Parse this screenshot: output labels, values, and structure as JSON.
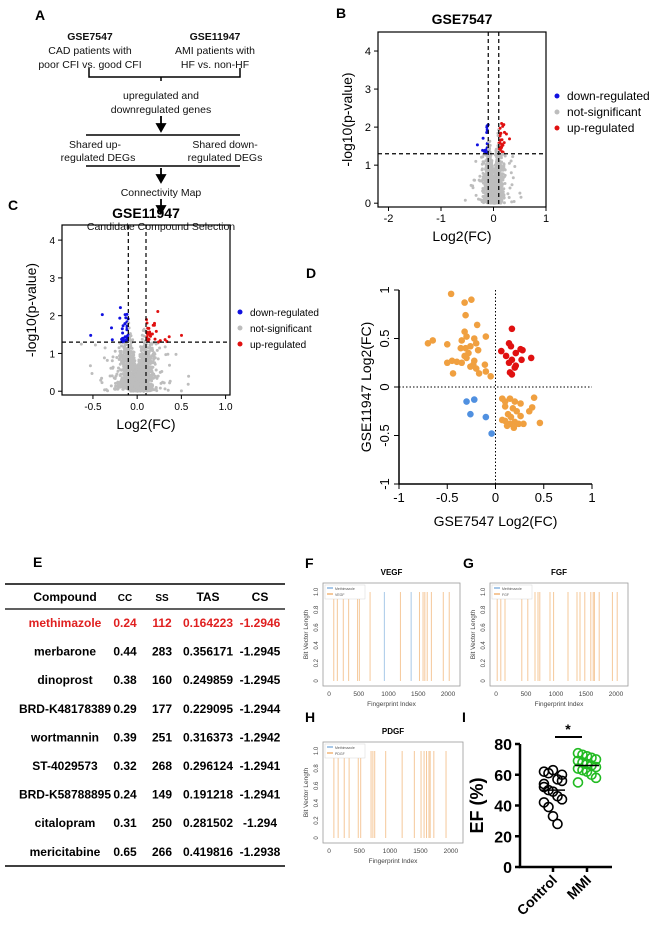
{
  "panel_labels": {
    "a": "A",
    "b": "B",
    "c": "C",
    "d": "D",
    "e": "E",
    "f": "F",
    "g": "G",
    "h": "H",
    "i": "I"
  },
  "flowchart": {
    "left_title": "GSE7547",
    "left_line1": "CAD patients with",
    "left_line2": "poor CFI vs. good CFI",
    "right_title": "GSE11947",
    "right_line1": "AMI patients with",
    "right_line2": "HF vs. non-HF",
    "step1_line1": "upregulated and",
    "step1_line2": "downregulated genes",
    "shared_up_line1": "Shared up-",
    "shared_up_line2": "regulated DEGs",
    "shared_down_line1": "Shared down-",
    "shared_down_line2": "regulated DEGs",
    "step3": "Connectivity Map",
    "step4": "Candidate Compound Selection"
  },
  "chart_data": [
    {
      "id": "B",
      "type": "scatter",
      "title": "GSE7547",
      "xlabel": "Log2(FC)",
      "ylabel": "-log10(p-value)",
      "xlim": [
        -2.2,
        1
      ],
      "ylim": [
        -0.1,
        4.5
      ],
      "xticks": [
        "-2",
        "-1",
        "0",
        "1"
      ],
      "yticks": [
        "0",
        "1",
        "2",
        "3",
        "4"
      ],
      "thresholds": {
        "fc": [
          -0.1,
          0.1
        ],
        "p": 1.3
      },
      "legend": [
        "down-regulated",
        "not-significant",
        "up-regulated"
      ],
      "legend_position": "right",
      "colors": {
        "down": "#1010e0",
        "ns": "#bdbdbd",
        "up": "#e01010"
      }
    },
    {
      "id": "C",
      "type": "scatter",
      "title": "GSE11947",
      "xlabel": "Log2(FC)",
      "ylabel": "-log10(p-value)",
      "xlim": [
        -0.85,
        1.05
      ],
      "ylim": [
        -0.1,
        4.4
      ],
      "xticks": [
        "-0.5",
        "0.0",
        "0.5",
        "1.0"
      ],
      "yticks": [
        "0",
        "1",
        "2",
        "3",
        "4"
      ],
      "thresholds": {
        "fc": [
          -0.1,
          0.1
        ],
        "p": 1.3
      },
      "legend": [
        "down-regulated",
        "not-significant",
        "up-regulated"
      ],
      "legend_position": "right",
      "colors": {
        "down": "#1010e0",
        "ns": "#bdbdbd",
        "up": "#e01010"
      }
    },
    {
      "id": "D",
      "type": "scatter",
      "xlabel": "GSE7547 Log2(FC)",
      "ylabel": "GSE11947 Log2(FC)",
      "xlim": [
        -1,
        1
      ],
      "ylim": [
        -1,
        1
      ],
      "xticks": [
        "-1",
        "-0.5",
        "0",
        "0.5",
        "1"
      ],
      "yticks": [
        "-1",
        "-0.5",
        "0",
        "0.5",
        "1"
      ],
      "colors": {
        "discordant": "#f0a040",
        "up": "#e01010",
        "down": "#5090e0"
      },
      "up_points": [
        [
          0.17,
          0.6
        ],
        [
          0.14,
          0.45
        ],
        [
          0.16,
          0.42
        ],
        [
          0.26,
          0.39
        ],
        [
          0.28,
          0.38
        ],
        [
          0.06,
          0.37
        ],
        [
          0.21,
          0.35
        ],
        [
          0.11,
          0.32
        ],
        [
          0.37,
          0.3
        ],
        [
          0.17,
          0.28
        ],
        [
          0.27,
          0.28
        ],
        [
          0.14,
          0.25
        ],
        [
          0.21,
          0.22
        ],
        [
          0.2,
          0.2
        ],
        [
          0.15,
          0.15
        ],
        [
          0.17,
          0.13
        ]
      ],
      "down_points": [
        [
          -0.3,
          -0.15
        ],
        [
          -0.22,
          -0.13
        ],
        [
          -0.26,
          -0.28
        ],
        [
          -0.1,
          -0.31
        ],
        [
          -0.04,
          -0.48
        ]
      ],
      "discordant_points": [
        [
          -0.46,
          0.96
        ],
        [
          -0.25,
          0.9
        ],
        [
          -0.32,
          0.87
        ],
        [
          -0.31,
          0.74
        ],
        [
          -0.19,
          0.64
        ],
        [
          -0.32,
          0.57
        ],
        [
          -0.3,
          0.52
        ],
        [
          -0.1,
          0.52
        ],
        [
          -0.7,
          0.45
        ],
        [
          -0.65,
          0.48
        ],
        [
          -0.5,
          0.44
        ],
        [
          -0.35,
          0.48
        ],
        [
          -0.22,
          0.5
        ],
        [
          -0.2,
          0.45
        ],
        [
          -0.26,
          0.42
        ],
        [
          -0.36,
          0.4
        ],
        [
          -0.31,
          0.4
        ],
        [
          -0.18,
          0.38
        ],
        [
          -0.28,
          0.35
        ],
        [
          -0.32,
          0.32
        ],
        [
          -0.3,
          0.3
        ],
        [
          -0.45,
          0.27
        ],
        [
          -0.4,
          0.26
        ],
        [
          -0.5,
          0.25
        ],
        [
          -0.35,
          0.25
        ],
        [
          -0.22,
          0.27
        ],
        [
          -0.23,
          0.23
        ],
        [
          -0.26,
          0.21
        ],
        [
          -0.11,
          0.23
        ],
        [
          -0.2,
          0.19
        ],
        [
          -0.44,
          0.14
        ],
        [
          -0.17,
          0.14
        ],
        [
          -0.1,
          0.16
        ],
        [
          -0.05,
          0.11
        ],
        [
          0.07,
          -0.12
        ],
        [
          0.1,
          -0.15
        ],
        [
          0.15,
          -0.12
        ],
        [
          0.2,
          -0.15
        ],
        [
          0.26,
          -0.17
        ],
        [
          0.4,
          -0.11
        ],
        [
          0.1,
          -0.2
        ],
        [
          0.18,
          -0.22
        ],
        [
          0.22,
          -0.25
        ],
        [
          0.13,
          -0.28
        ],
        [
          0.38,
          -0.21
        ],
        [
          0.35,
          -0.25
        ],
        [
          0.16,
          -0.31
        ],
        [
          0.26,
          -0.3
        ],
        [
          0.1,
          -0.35
        ],
        [
          0.2,
          -0.36
        ],
        [
          0.07,
          -0.34
        ],
        [
          0.24,
          -0.38
        ],
        [
          0.15,
          -0.38
        ],
        [
          0.19,
          -0.42
        ],
        [
          0.29,
          -0.38
        ],
        [
          0.46,
          -0.37
        ],
        [
          0.12,
          -0.4
        ]
      ]
    },
    {
      "id": "F",
      "type": "bar",
      "title": "VEGF",
      "xlabel": "Fingerprint Index",
      "ylabel": "Bit Vector Length",
      "xlim": [
        0,
        2100
      ],
      "ylim": [
        0,
        1
      ],
      "xticks": [
        "0",
        "500",
        "1000",
        "1500",
        "2000"
      ],
      "yticks": [
        "0",
        "0.2",
        "0.4",
        "0.6",
        "0.8",
        "1.0"
      ],
      "legend": [
        "Methimazole",
        "VEGF"
      ],
      "legend_position": "top-left",
      "colors": {
        "Methimazole": "#a8c8e8",
        "other": "#f5c89a"
      },
      "methimazole_bits": [
        930,
        1380
      ],
      "other_bits": [
        80,
        140,
        240,
        330,
        480,
        510,
        690,
        1200,
        1520,
        1580,
        1610,
        1650,
        1720,
        1920,
        2020
      ]
    },
    {
      "id": "G",
      "type": "bar",
      "title": "FGF",
      "xlabel": "Fingerprint Index",
      "ylabel": "Bit Vector Length",
      "xlim": [
        0,
        2100
      ],
      "ylim": [
        0,
        1
      ],
      "xticks": [
        "0",
        "500",
        "1000",
        "1500",
        "2000"
      ],
      "yticks": [
        "0",
        "0.2",
        "0.4",
        "0.6",
        "0.8",
        "1.0"
      ],
      "legend": [
        "Methimazole",
        "FGF"
      ],
      "legend_position": "top-left",
      "colors": {
        "Methimazole": "#a8c8e8",
        "other": "#f5c89a"
      },
      "methimazole_bits": [],
      "other_bits": [
        20,
        80,
        150,
        430,
        530,
        650,
        700,
        730,
        900,
        960,
        1200,
        1350,
        1400,
        1480,
        1580,
        1620,
        1640,
        1720,
        1940,
        2020
      ]
    },
    {
      "id": "H",
      "type": "bar",
      "title": "PDGF",
      "xlabel": "Fingerprint Index",
      "ylabel": "Bit Vector Length",
      "xlim": [
        0,
        2100
      ],
      "ylim": [
        0,
        1
      ],
      "xticks": [
        "0",
        "500",
        "1000",
        "1500",
        "2000"
      ],
      "yticks": [
        "0",
        "0.2",
        "0.4",
        "0.6",
        "0.8",
        "1.0"
      ],
      "legend": [
        "Methimazole",
        "PDGF"
      ],
      "legend_position": "top-left",
      "colors": {
        "Methimazole": "#a8c8e8",
        "other": "#f5c89a"
      },
      "methimazole_bits": [],
      "other_bits": [
        80,
        150,
        250,
        330,
        480,
        520,
        690,
        720,
        750,
        930,
        1200,
        1400,
        1510,
        1560,
        1600,
        1640,
        1660,
        1720,
        1920
      ]
    },
    {
      "id": "I",
      "type": "scatter",
      "xlabel": "",
      "ylabel": "EF (%)",
      "ylim": [
        0,
        80
      ],
      "yticks": [
        "0",
        "20",
        "40",
        "60",
        "80"
      ],
      "categories": [
        "Control",
        "MMI"
      ],
      "significance": "*",
      "colors": {
        "Control": "#000000",
        "MMI": "#22bb22"
      },
      "series": [
        {
          "name": "Control",
          "values": [
            62,
            61,
            63,
            57,
            56,
            52,
            50,
            49,
            46,
            44,
            42,
            39,
            33,
            28,
            60,
            54
          ],
          "mean": 50
        },
        {
          "name": "MMI",
          "values": [
            74,
            73,
            72,
            71,
            70,
            69,
            68,
            67,
            66,
            65,
            64,
            63,
            62,
            60,
            58,
            55
          ],
          "mean": 66
        }
      ]
    }
  ],
  "table": {
    "headers": [
      "Compound",
      "CC",
      "SS",
      "TAS",
      "CS"
    ],
    "highlight_color": "#e02020",
    "rows": [
      [
        "methimazole",
        "0.24",
        "112",
        "0.164223",
        "-1.2946"
      ],
      [
        "merbarone",
        "0.44",
        "283",
        "0.356171",
        "-1.2945"
      ],
      [
        "dinoprost",
        "0.38",
        "160",
        "0.249859",
        "-1.2945"
      ],
      [
        "BRD-K48178389",
        "0.29",
        "177",
        "0.229095",
        "-1.2944"
      ],
      [
        "wortmannin",
        "0.39",
        "251",
        "0.316373",
        "-1.2942"
      ],
      [
        "ST-4029573",
        "0.32",
        "268",
        "0.296124",
        "-1.2941"
      ],
      [
        "BRD-K58788895",
        "0.24",
        "149",
        "0.191218",
        "-1.2941"
      ],
      [
        "citalopram",
        "0.31",
        "250",
        "0.281502",
        "-1.294"
      ],
      [
        "mericitabine",
        "0.65",
        "266",
        "0.419816",
        "-1.2938"
      ]
    ]
  }
}
